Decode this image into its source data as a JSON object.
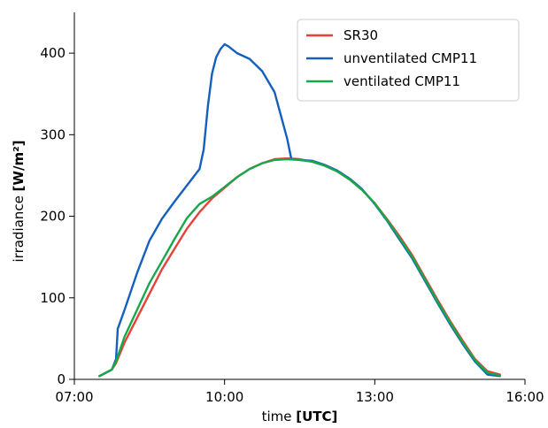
{
  "chart_data": {
    "type": "line",
    "title": "",
    "xlabel": "time",
    "xlabel_unit": "[UTC]",
    "ylabel": "irradiance",
    "ylabel_unit": "[W/m²]",
    "xlim": [
      "07:00",
      "16:00"
    ],
    "ylim": [
      0,
      450
    ],
    "xticks": [
      "07:00",
      "10:00",
      "13:00",
      "16:00"
    ],
    "yticks": [
      0,
      100,
      200,
      300,
      400
    ],
    "grid": false,
    "legend_position": "top-right",
    "series": [
      {
        "name": "SR30",
        "color": "#e8413b",
        "x": [
          "07:30",
          "07:45",
          "07:50",
          "08:00",
          "08:15",
          "08:30",
          "08:45",
          "09:00",
          "09:15",
          "09:30",
          "09:45",
          "10:00",
          "10:15",
          "10:30",
          "10:45",
          "11:00",
          "11:15",
          "11:30",
          "11:45",
          "12:00",
          "12:15",
          "12:30",
          "12:45",
          "13:00",
          "13:15",
          "13:30",
          "13:45",
          "14:00",
          "14:15",
          "14:30",
          "14:45",
          "15:00",
          "15:15",
          "15:30"
        ],
        "values": [
          4,
          12,
          20,
          45,
          75,
          105,
          135,
          160,
          185,
          205,
          222,
          235,
          248,
          258,
          265,
          270,
          271,
          270,
          267,
          262,
          255,
          245,
          232,
          216,
          196,
          175,
          152,
          125,
          98,
          72,
          48,
          25,
          10,
          6
        ]
      },
      {
        "name": "unventilated CMP11",
        "color": "#1560bd",
        "x": [
          "07:30",
          "07:45",
          "07:50",
          "07:52",
          "08:00",
          "08:15",
          "08:30",
          "08:45",
          "09:00",
          "09:15",
          "09:30",
          "09:35",
          "09:40",
          "09:45",
          "09:50",
          "09:55",
          "10:00",
          "10:05",
          "10:10",
          "10:15",
          "10:30",
          "10:45",
          "11:00",
          "11:15",
          "11:20",
          "11:25",
          "11:30",
          "11:45",
          "12:00",
          "12:15",
          "12:30",
          "12:45",
          "13:00",
          "13:15",
          "13:30",
          "13:45",
          "14:00",
          "14:15",
          "14:30",
          "14:45",
          "15:00",
          "15:15",
          "15:30"
        ],
        "values": [
          4,
          12,
          25,
          62,
          85,
          130,
          170,
          197,
          218,
          238,
          258,
          282,
          335,
          375,
          395,
          405,
          411,
          408,
          404,
          400,
          393,
          378,
          352,
          295,
          270,
          270,
          269,
          268,
          263,
          256,
          246,
          233,
          215,
          194,
          171,
          148,
          121,
          94,
          68,
          44,
          22,
          6,
          4
        ]
      },
      {
        "name": "ventilated CMP11",
        "color": "#18a84b",
        "x": [
          "07:30",
          "07:45",
          "07:50",
          "08:00",
          "08:15",
          "08:30",
          "08:45",
          "09:00",
          "09:15",
          "09:30",
          "09:45",
          "10:00",
          "10:15",
          "10:30",
          "10:45",
          "11:00",
          "11:15",
          "11:30",
          "11:45",
          "12:00",
          "12:15",
          "12:30",
          "12:45",
          "13:00",
          "13:15",
          "13:30",
          "13:45",
          "14:00",
          "14:15",
          "14:30",
          "14:45",
          "15:00",
          "15:15",
          "15:30"
        ],
        "values": [
          4,
          12,
          22,
          52,
          85,
          118,
          145,
          172,
          198,
          215,
          224,
          236,
          248,
          258,
          265,
          269,
          270,
          269,
          267,
          262,
          255,
          245,
          232,
          216,
          195,
          173,
          150,
          123,
          96,
          70,
          46,
          24,
          8,
          5
        ]
      }
    ]
  }
}
